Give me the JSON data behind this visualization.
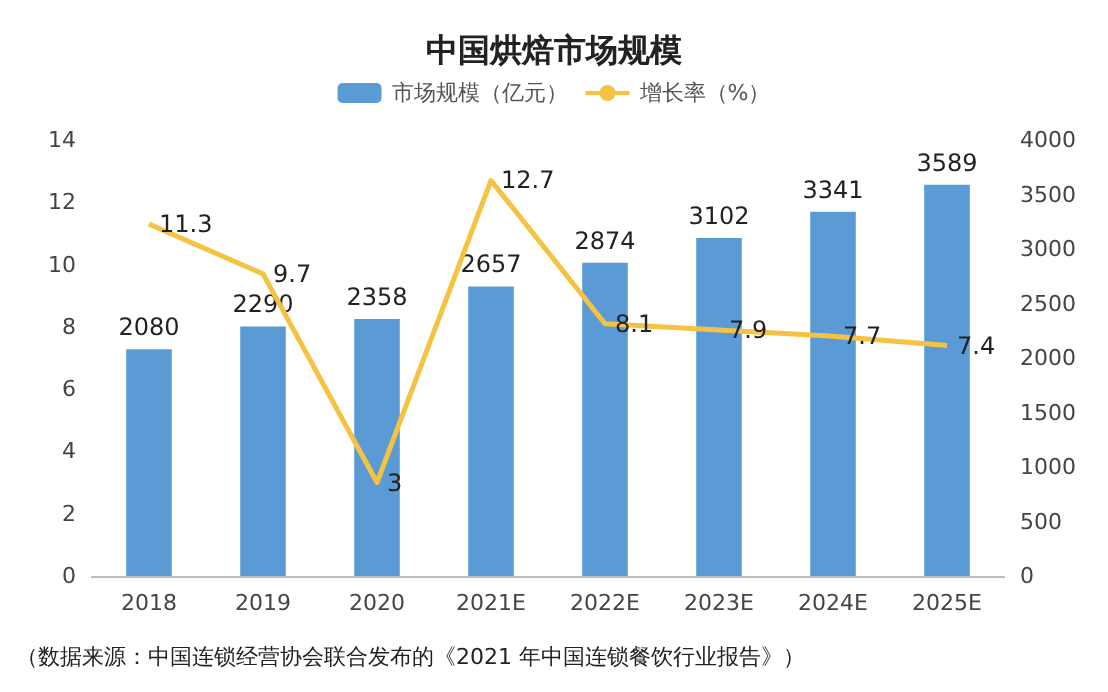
{
  "chart_data": {
    "type": "bar",
    "title": "中国烘焙市场规模",
    "categories": [
      "2018",
      "2019",
      "2020",
      "2021E",
      "2022E",
      "2023E",
      "2024E",
      "2025E"
    ],
    "series": [
      {
        "name": "市场规模（亿元）",
        "axis": "y2",
        "color": "#5b9bd5",
        "values": [
          2080,
          2290,
          2358,
          2657,
          2874,
          3102,
          3341,
          3589
        ]
      },
      {
        "name": "增长率（%）",
        "type": "line",
        "axis": "y",
        "color": "#f5c242",
        "values": [
          11.3,
          9.7,
          3,
          12.7,
          8.1,
          7.9,
          7.7,
          7.4
        ]
      }
    ],
    "ylim": [
      0,
      14
    ],
    "yticks": [
      0,
      2,
      4,
      6,
      8,
      10,
      12,
      14
    ],
    "y2lim": [
      0,
      4000
    ],
    "y2ticks": [
      0,
      500,
      1000,
      1500,
      2000,
      2500,
      3000,
      3500,
      4000
    ],
    "data_labels": true,
    "legend": "top",
    "grid": false,
    "marker": "none",
    "line_style": "solid",
    "annotations": [
      "（数据来源：中国连锁经营协会联合发布的《2021 年中国连锁餐饮行业报告》）"
    ]
  }
}
